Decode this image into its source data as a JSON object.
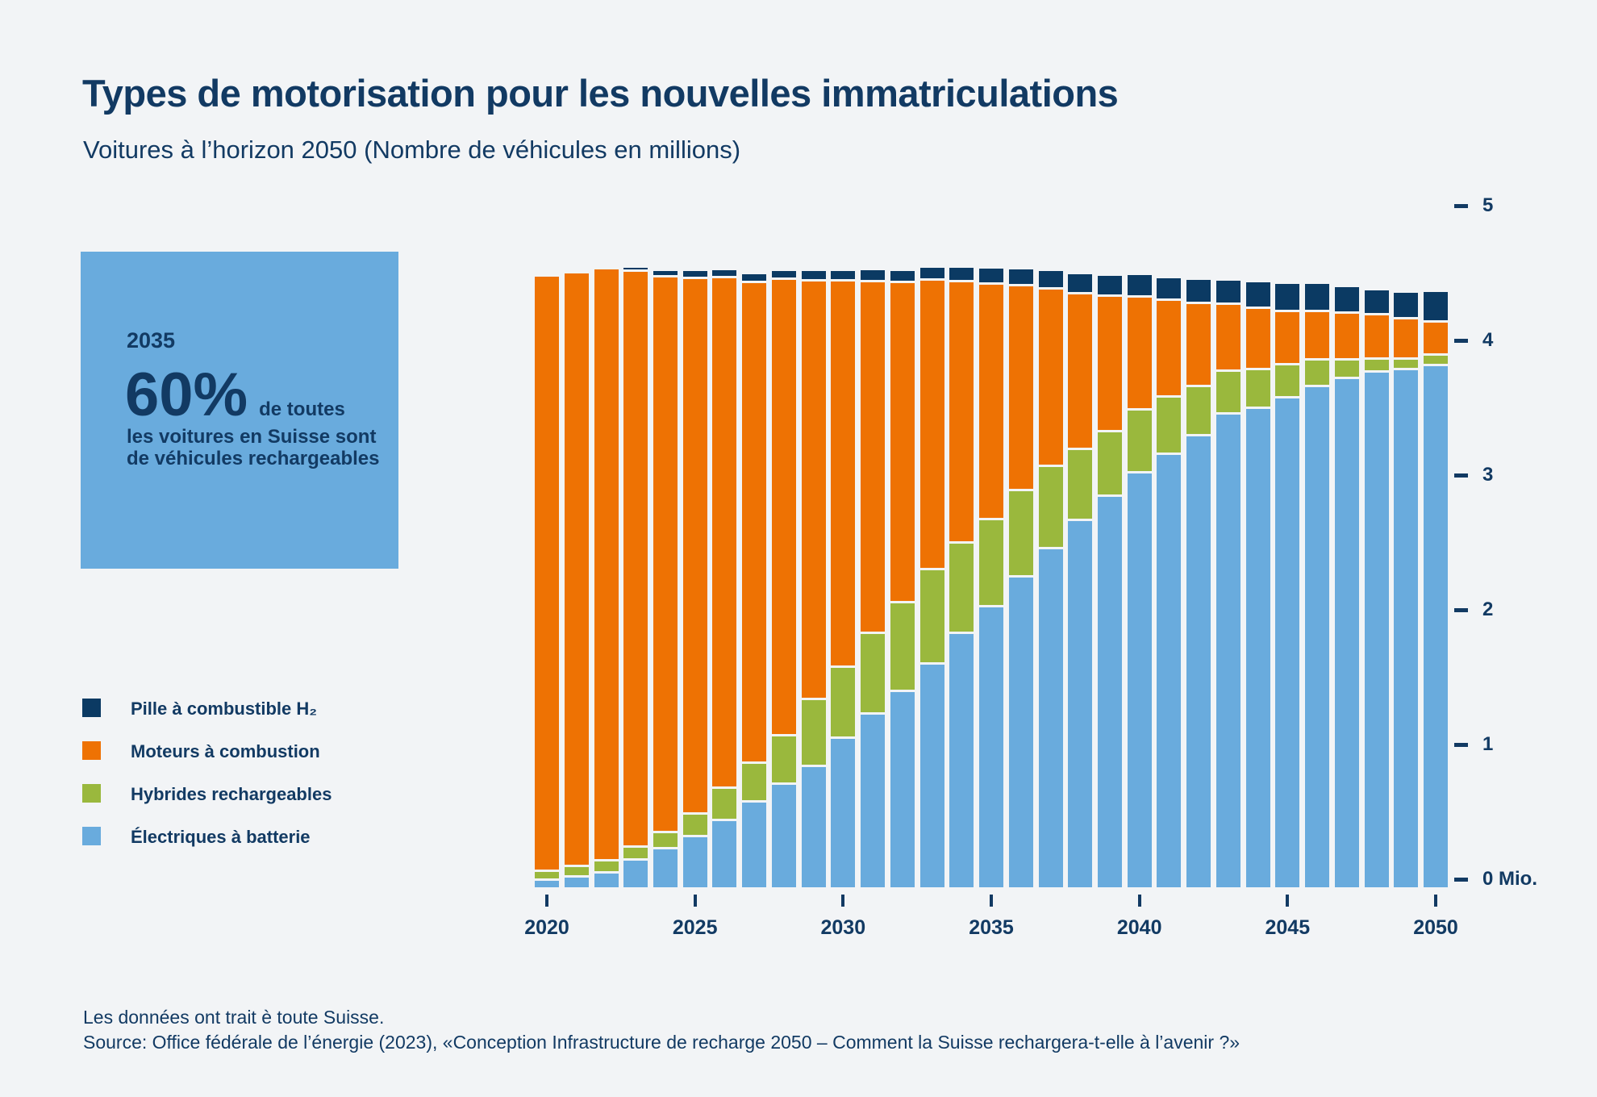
{
  "page": {
    "background_color": "#f2f4f6",
    "text_color": "#123a63"
  },
  "header": {
    "title": "Types de motorisation pour les nouvelles immatriculations",
    "subtitle": "Voitures à l’horizon 2050 (Nombre de véhicules en millions)"
  },
  "callout": {
    "background_color": "#69abdd",
    "year": "2035",
    "big_value": "60%",
    "suffix": "de toutes",
    "line2": "les voitures en Suisse sont",
    "line3": "de véhicules rechargeables"
  },
  "legend": {
    "items": [
      {
        "label": "Pille à combustible H₂",
        "color": "#0b3a63"
      },
      {
        "label": "Moteurs à combustion",
        "color": "#ee7203"
      },
      {
        "label": "Hybrides rechargeables",
        "color": "#9ab83d"
      },
      {
        "label": "Électriques à batterie",
        "color": "#69abdd"
      }
    ]
  },
  "chart_data": {
    "type": "bar",
    "stacked": true,
    "title": "Types de motorisation pour les nouvelles immatriculations",
    "subtitle": "Voitures à l’horizon 2050 (Nombre de véhicules en millions)",
    "xlabel": "",
    "ylabel": "Nombre de véhicules en millions",
    "unit_label": "Mio.",
    "ylim": [
      0,
      5
    ],
    "grid": false,
    "legend_position": "left",
    "x": [
      2020,
      2021,
      2022,
      2023,
      2024,
      2025,
      2026,
      2027,
      2028,
      2029,
      2030,
      2031,
      2032,
      2033,
      2034,
      2035,
      2036,
      2037,
      2038,
      2039,
      2040,
      2041,
      2042,
      2043,
      2044,
      2045,
      2046,
      2047,
      2048,
      2049,
      2050
    ],
    "x_ticks": [
      2020,
      2025,
      2030,
      2035,
      2040,
      2045,
      2050
    ],
    "y_ticks": [
      5,
      4,
      3,
      2,
      1,
      0
    ],
    "series_note": "series listed bottom-to-top of stack, values in millions of vehicles",
    "series": [
      {
        "key": "bev",
        "name": "Électriques à batterie",
        "color": "#69abdd",
        "values": [
          0.05,
          0.07,
          0.1,
          0.2,
          0.28,
          0.37,
          0.49,
          0.63,
          0.76,
          0.89,
          1.1,
          1.28,
          1.45,
          1.65,
          1.88,
          2.08,
          2.3,
          2.51,
          2.72,
          2.9,
          3.07,
          3.21,
          3.35,
          3.51,
          3.55,
          3.63,
          3.71,
          3.77,
          3.82,
          3.84,
          3.87
        ]
      },
      {
        "key": "phev",
        "name": "Hybrides rechargeables",
        "color": "#9ab83d",
        "values": [
          0.05,
          0.06,
          0.07,
          0.08,
          0.1,
          0.15,
          0.22,
          0.27,
          0.34,
          0.48,
          0.51,
          0.58,
          0.64,
          0.68,
          0.65,
          0.63,
          0.62,
          0.59,
          0.51,
          0.46,
          0.45,
          0.41,
          0.35,
          0.3,
          0.27,
          0.23,
          0.18,
          0.12,
          0.08,
          0.06,
          0.06
        ]
      },
      {
        "key": "ice",
        "name": "Moteurs à combustion",
        "color": "#ee7203",
        "values": [
          4.4,
          4.39,
          4.38,
          4.26,
          4.11,
          3.96,
          3.77,
          3.55,
          3.37,
          3.09,
          2.85,
          2.59,
          2.36,
          2.13,
          1.92,
          1.73,
          1.5,
          1.3,
          1.14,
          0.99,
          0.82,
          0.7,
          0.6,
          0.48,
          0.44,
          0.38,
          0.34,
          0.33,
          0.31,
          0.28,
          0.23
        ]
      },
      {
        "key": "h2",
        "name": "Pille à combustible H₂",
        "color": "#0b3a63",
        "values": [
          0,
          0,
          0,
          0.01,
          0.03,
          0.04,
          0.04,
          0.05,
          0.05,
          0.06,
          0.06,
          0.07,
          0.07,
          0.08,
          0.09,
          0.1,
          0.11,
          0.12,
          0.13,
          0.14,
          0.15,
          0.15,
          0.16,
          0.16,
          0.18,
          0.19,
          0.19,
          0.18,
          0.17,
          0.18,
          0.21
        ]
      }
    ]
  },
  "footer": {
    "line1": "Les données ont trait è toute Suisse.",
    "line2": "Source: Office fédérale de l’énergie (2023), «Conception Infrastructure de recharge 2050 – Comment la Suisse rechargera-t-elle à l’avenir ?»"
  }
}
